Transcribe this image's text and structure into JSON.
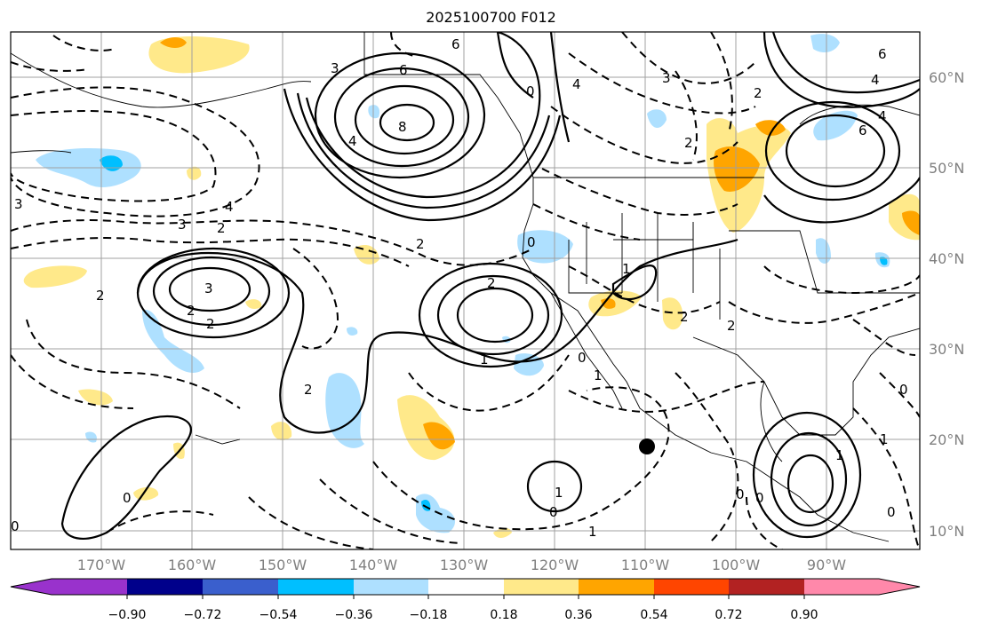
{
  "title": "2025100700 F012",
  "map": {
    "lat_labels": [
      "60°N",
      "50°N",
      "40°N",
      "30°N",
      "20°N",
      "10°N"
    ],
    "lon_labels": [
      "170°W",
      "160°W",
      "150°W",
      "140°W",
      "130°W",
      "120°W",
      "110°W",
      "100°W",
      "90°W"
    ],
    "contour_labels": [
      "6",
      "3",
      "6",
      "8",
      "4",
      "6",
      "0",
      "4",
      "2",
      "2",
      "6",
      "4",
      "4",
      "3",
      "3",
      "4",
      "3",
      "2",
      "2",
      "2",
      "2",
      "0",
      "1",
      "3",
      "2",
      "2",
      "2",
      "1",
      "0",
      "1",
      "2",
      "2",
      "0",
      "0",
      "1",
      "1",
      "0",
      "0",
      "0",
      "0",
      "0",
      "1",
      "1"
    ],
    "colors": {
      "land_outline": "#000000",
      "grid": "#a0a0a0",
      "positive_fill_light": "#ffe98a",
      "positive_fill_mid": "#ffa500",
      "negative_fill_light": "#aee0ff",
      "negative_fill_mid": "#00bfff",
      "marker": "#000000"
    }
  },
  "colorbar": {
    "colors": [
      "#9932cc",
      "#00008b",
      "#3a5fcd",
      "#00bfff",
      "#aee0ff",
      "#ffffff",
      "#ffe98a",
      "#ffa500",
      "#ff4500",
      "#b22222",
      "#ff88aa"
    ],
    "ticks": [
      "−0.90",
      "−0.72",
      "−0.54",
      "−0.36",
      "−0.18",
      "0.18",
      "0.36",
      "0.54",
      "0.72",
      "0.90"
    ]
  }
}
